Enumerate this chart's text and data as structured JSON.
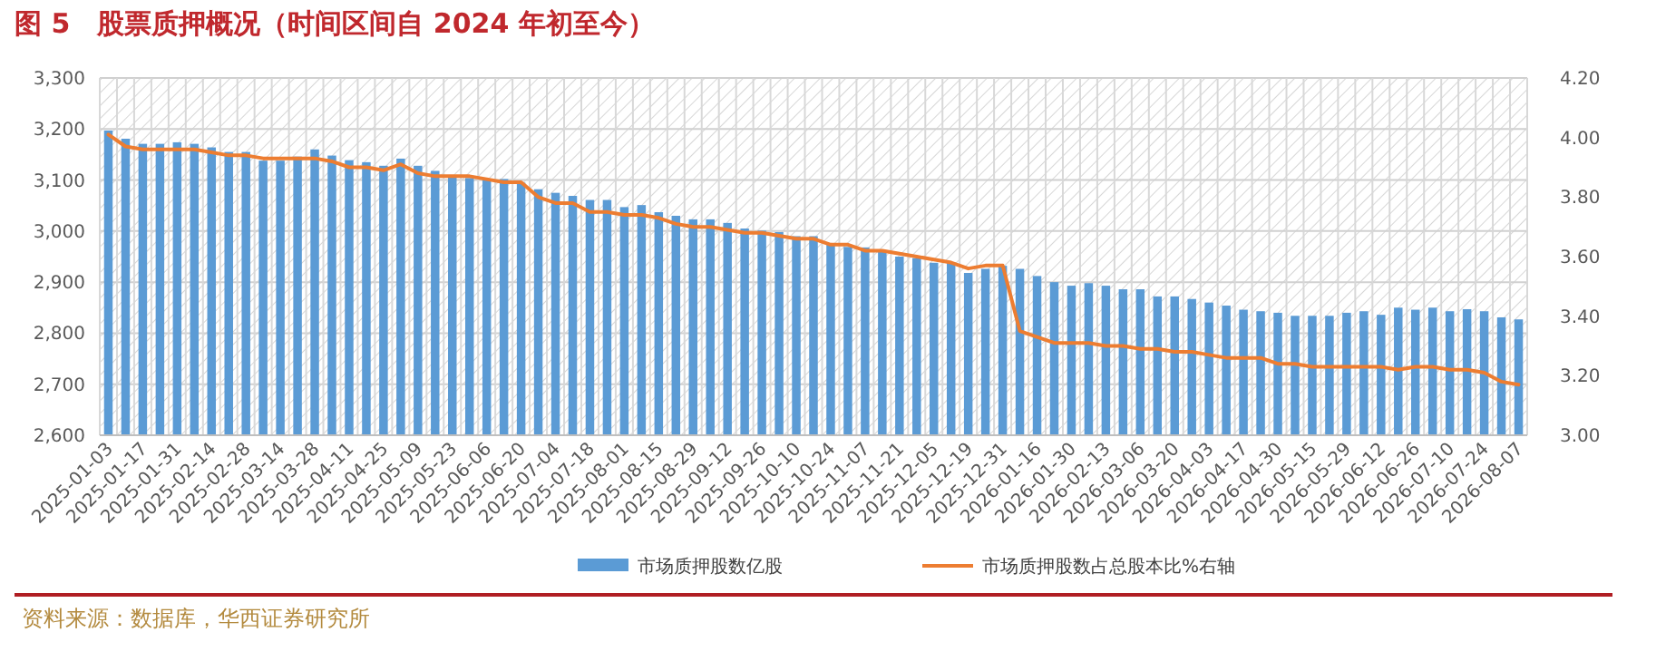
{
  "chart_data": {
    "type": "bar",
    "title": "图 5　股票质押概况（时间区间自 2024 年初至今）",
    "categories": [
      "2025-01-03",
      null,
      "2025-01-17",
      null,
      "2025-01-31",
      null,
      "2025-02-14",
      null,
      "2025-02-28",
      null,
      "2025-03-14",
      null,
      "2025-03-28",
      null,
      "2025-04-11",
      null,
      "2025-04-25",
      null,
      "2025-05-09",
      null,
      "2025-05-23",
      null,
      "2025-06-06",
      null,
      "2025-06-20",
      null,
      "2025-07-04",
      null,
      "2025-07-18",
      null,
      "2025-08-01",
      null,
      "2025-08-15",
      null,
      "2025-08-29",
      null,
      "2025-09-12",
      null,
      "2025-09-26",
      null,
      "2025-10-10",
      null,
      "2025-10-24",
      null,
      "2025-11-07",
      null,
      "2025-11-21",
      null,
      "2025-12-05",
      null,
      "2025-12-19",
      null,
      "2025-12-31",
      null,
      "2026-01-16",
      null,
      "2026-01-30",
      null,
      "2026-02-13",
      null,
      "2026-03-06",
      null,
      "2026-03-20",
      null,
      "2026-04-03",
      null,
      "2026-04-17",
      null,
      "2026-04-30",
      null,
      "2026-05-15",
      null,
      "2026-05-29",
      null,
      "2026-06-12",
      null,
      "2026-06-26",
      null,
      "2026-07-10",
      null,
      "2026-07-24",
      null,
      "2026-08-07"
    ],
    "series": [
      {
        "name": "市场质押股数亿股",
        "color": "#5b9bd5",
        "values": [
          3197,
          3181,
          3171,
          3171,
          3174,
          3171,
          3164,
          3155,
          3155,
          3138,
          3138,
          3146,
          3160,
          3148,
          3139,
          3135,
          3128,
          3142,
          3128,
          3118,
          3107,
          3104,
          3102,
          3102,
          3095,
          3082,
          3075,
          3069,
          3061,
          3061,
          3047,
          3051,
          3037,
          3030,
          3023,
          3023,
          3016,
          3005,
          3001,
          2998,
          2990,
          2990,
          2973,
          2969,
          2968,
          2960,
          2950,
          2947,
          2938,
          2938,
          2918,
          2926,
          2932,
          2926,
          2912,
          2900,
          2893,
          2898,
          2893,
          2886,
          2886,
          2872,
          2872,
          2867,
          2860,
          2854,
          2846,
          2843,
          2840,
          2834,
          2834,
          2834,
          2840,
          2843,
          2836,
          2850,
          2846,
          2850,
          2843,
          2847,
          2843,
          2831,
          2827
        ]
      },
      {
        "name": "市场质押股数占总股本比%右轴",
        "type": "line",
        "axis": "y2",
        "color": "#ed7d31",
        "values": [
          4.01,
          3.97,
          3.96,
          3.96,
          3.96,
          3.96,
          3.95,
          3.94,
          3.94,
          3.93,
          3.93,
          3.93,
          3.93,
          3.92,
          3.9,
          3.9,
          3.89,
          3.91,
          3.88,
          3.87,
          3.87,
          3.87,
          3.86,
          3.85,
          3.85,
          3.8,
          3.78,
          3.78,
          3.75,
          3.75,
          3.74,
          3.74,
          3.73,
          3.71,
          3.7,
          3.7,
          3.69,
          3.68,
          3.68,
          3.67,
          3.66,
          3.66,
          3.64,
          3.64,
          3.62,
          3.62,
          3.61,
          3.6,
          3.59,
          3.58,
          3.56,
          3.57,
          3.57,
          3.35,
          3.33,
          3.31,
          3.31,
          3.31,
          3.3,
          3.3,
          3.29,
          3.29,
          3.28,
          3.28,
          3.27,
          3.26,
          3.26,
          3.26,
          3.24,
          3.24,
          3.23,
          3.23,
          3.23,
          3.23,
          3.23,
          3.22,
          3.23,
          3.23,
          3.22,
          3.22,
          3.21,
          3.18,
          3.17
        ]
      }
    ],
    "ylim": [
      2600,
      3300
    ],
    "yticks": [
      {
        "value": 2600,
        "label": "2,600"
      },
      {
        "value": 2700,
        "label": "2,700"
      },
      {
        "value": 2800,
        "label": "2,800"
      },
      {
        "value": 2900,
        "label": "2,900"
      },
      {
        "value": 3000,
        "label": "3,000"
      },
      {
        "value": 3100,
        "label": "3,100"
      },
      {
        "value": 3200,
        "label": "3,200"
      },
      {
        "value": 3300,
        "label": "3,300"
      }
    ],
    "y2lim": [
      3.0,
      4.2
    ],
    "y2ticks": [
      {
        "value": 3.0,
        "label": "3.00"
      },
      {
        "value": 3.2,
        "label": "3.20"
      },
      {
        "value": 3.4,
        "label": "3.40"
      },
      {
        "value": 3.6,
        "label": "3.60"
      },
      {
        "value": 3.8,
        "label": "3.80"
      },
      {
        "value": 4.0,
        "label": "4.00"
      },
      {
        "value": 4.2,
        "label": "4.20"
      }
    ],
    "grid": true,
    "legend": "bottom",
    "annotations": [
      "资料来源：数据库，华西证券研究所"
    ]
  }
}
